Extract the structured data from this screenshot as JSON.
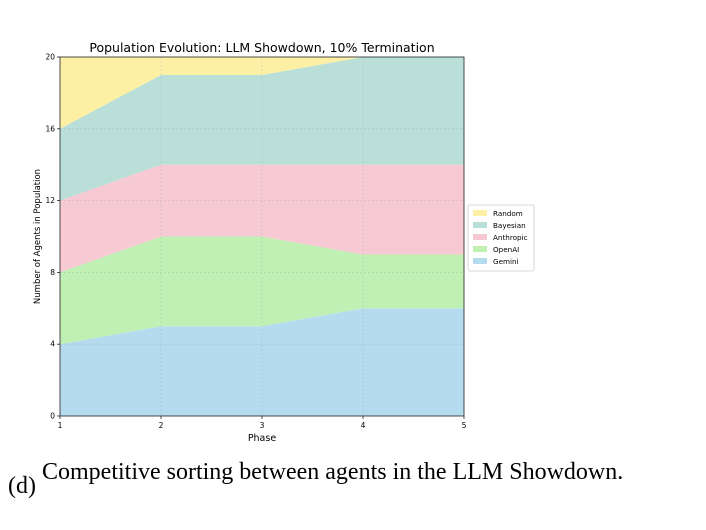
{
  "chart_data": {
    "type": "area",
    "stacked": true,
    "title": "Population Evolution: LLM Showdown, 10% Termination",
    "xlabel": "Phase",
    "ylabel": "Number of Agents in Population",
    "x": [
      1,
      2,
      3,
      4,
      5
    ],
    "xlim": [
      1,
      5
    ],
    "ylim": [
      0,
      20
    ],
    "xticks": [
      "1",
      "2",
      "3",
      "4",
      "5"
    ],
    "yticks": [
      "0",
      "4",
      "8",
      "12",
      "16",
      "20"
    ],
    "grid": true,
    "legend_position": "right",
    "series": [
      {
        "name": "Gemini",
        "values": [
          4,
          5,
          5,
          6,
          6
        ],
        "color": "#b5dbee"
      },
      {
        "name": "OpenAI",
        "values": [
          4,
          5,
          5,
          3,
          3
        ],
        "color": "#c1f0b5"
      },
      {
        "name": "Anthropic",
        "values": [
          4,
          4,
          4,
          5,
          5
        ],
        "color": "#f7c9d2"
      },
      {
        "name": "Bayesian",
        "values": [
          4,
          5,
          5,
          6,
          6
        ],
        "color": "#b9dfd8"
      },
      {
        "name": "Random",
        "values": [
          4,
          1,
          1,
          0,
          0
        ],
        "color": "#fdf0a5"
      }
    ],
    "legend_order": [
      "Random",
      "Bayesian",
      "Anthropic",
      "OpenAI",
      "Gemini"
    ]
  },
  "caption": {
    "label": "(d)",
    "text": "Competitive sorting between agents in the LLM Showdown."
  }
}
